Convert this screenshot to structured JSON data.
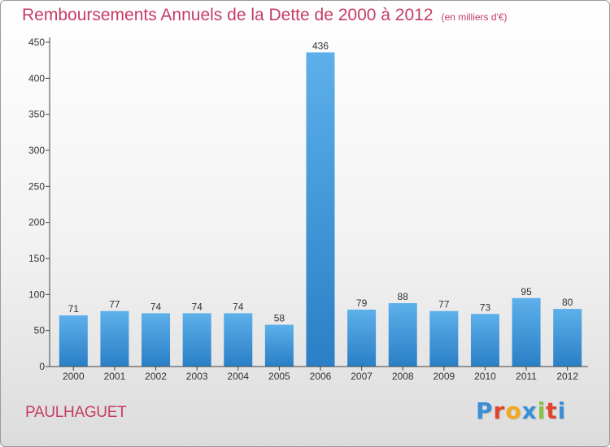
{
  "header": {
    "title": "Remboursements Annuels de la Dette de 2000 à 2012",
    "unit": "(en milliers d'€)"
  },
  "footer": {
    "commune": "PAULHAGUET",
    "logo_letters": [
      "P",
      "r",
      "o",
      "x",
      "i",
      "t",
      "i"
    ],
    "logo_colors": [
      "#3a8fd6",
      "#e0462f",
      "#f2a81f",
      "#3a8fd6",
      "#8ac43f",
      "#e0462f",
      "#3a8fd6"
    ]
  },
  "colors": {
    "title": "#c63c64",
    "bar_top": "#5db0ea",
    "bar_bottom": "#2a7fc6",
    "axis": "#444444"
  },
  "chart_data": {
    "type": "bar",
    "title": "Remboursements Annuels de la Dette de 2000 à 2012",
    "subtitle": "(en milliers d'€)",
    "categories": [
      "2000",
      "2001",
      "2002",
      "2003",
      "2004",
      "2005",
      "2006",
      "2007",
      "2008",
      "2009",
      "2010",
      "2011",
      "2012"
    ],
    "values": [
      71,
      77,
      74,
      74,
      74,
      58,
      436,
      79,
      88,
      77,
      73,
      95,
      80
    ],
    "xlabel": "",
    "ylabel": "",
    "ylim": [
      0,
      450
    ],
    "yticks": [
      0,
      50,
      100,
      150,
      200,
      250,
      300,
      350,
      400,
      450
    ],
    "grid": false,
    "legend": "none"
  }
}
